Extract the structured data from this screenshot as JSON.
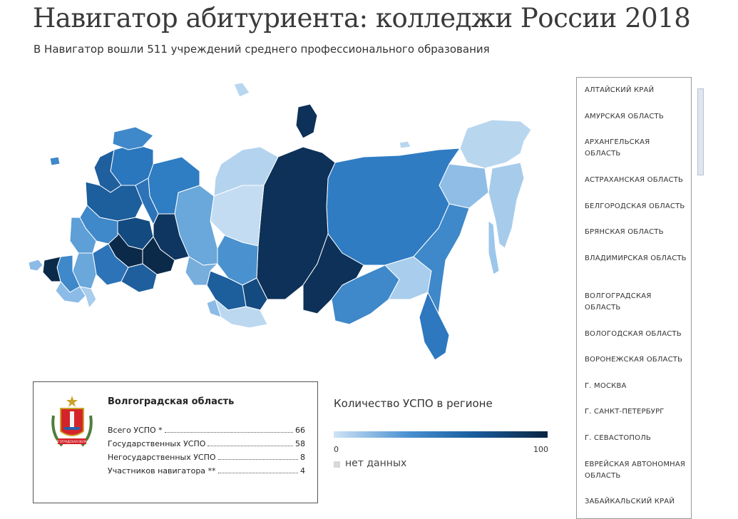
{
  "header": {
    "title": "Навигатор абитуриента: колледжи России 2018",
    "subtitle": "В Навигатор вошли 511 учреждений среднего профессионального образования"
  },
  "info_card": {
    "region": "Волгоградская область",
    "emblem_text": "ВОЛГОГРАДСКАЯ ОБЛАСТЬ",
    "stats": [
      {
        "label": "Всего УСПО *",
        "value": "66"
      },
      {
        "label": "Государственных УСПО",
        "value": "58"
      },
      {
        "label": "Негосударственных УСПО",
        "value": "8"
      },
      {
        "label": "Участников навигатора **",
        "value": "4"
      }
    ]
  },
  "legend": {
    "title": "Количество УСПО в регионе",
    "min": "0",
    "max": "100",
    "no_data": "нет данных",
    "colors": {
      "low": "#cfe3f6",
      "mid": "#2e7fc4",
      "high": "#0a2440",
      "no_data": "#d8d8d8"
    }
  },
  "region_list": [
    {
      "label": "АЛТАЙСКИЙ КРАЙ"
    },
    {
      "label": "АМУРСКАЯ ОБЛАСТЬ"
    },
    {
      "label": "АРХАНГЕЛЬСКАЯ ОБЛАСТЬ"
    },
    {
      "label": "АСТРАХАНСКАЯ ОБЛАСТЬ"
    },
    {
      "label": "БЕЛГОРОДСКАЯ ОБЛАСТЬ"
    },
    {
      "label": "БРЯНСКАЯ ОБЛАСТЬ"
    },
    {
      "label": "ВЛАДИМИРСКАЯ ОБЛАСТЬ"
    },
    {
      "label": "ВОЛГОГРАДСКАЯ ОБЛАСТЬ"
    },
    {
      "label": "ВОЛОГОДСКАЯ ОБЛАСТЬ"
    },
    {
      "label": "ВОРОНЕЖСКАЯ ОБЛАСТЬ"
    },
    {
      "label": "Г. МОСКВА"
    },
    {
      "label": "Г. САНКТ-ПЕТЕРБУРГ"
    },
    {
      "label": "Г. СЕВАСТОПОЛЬ"
    },
    {
      "label": "ЕВРЕЙСКАЯ АВТОНОМНАЯ ОБЛАСТЬ"
    },
    {
      "label": "ЗАБАЙКАЛЬСКИЙ КРАЙ"
    }
  ]
}
